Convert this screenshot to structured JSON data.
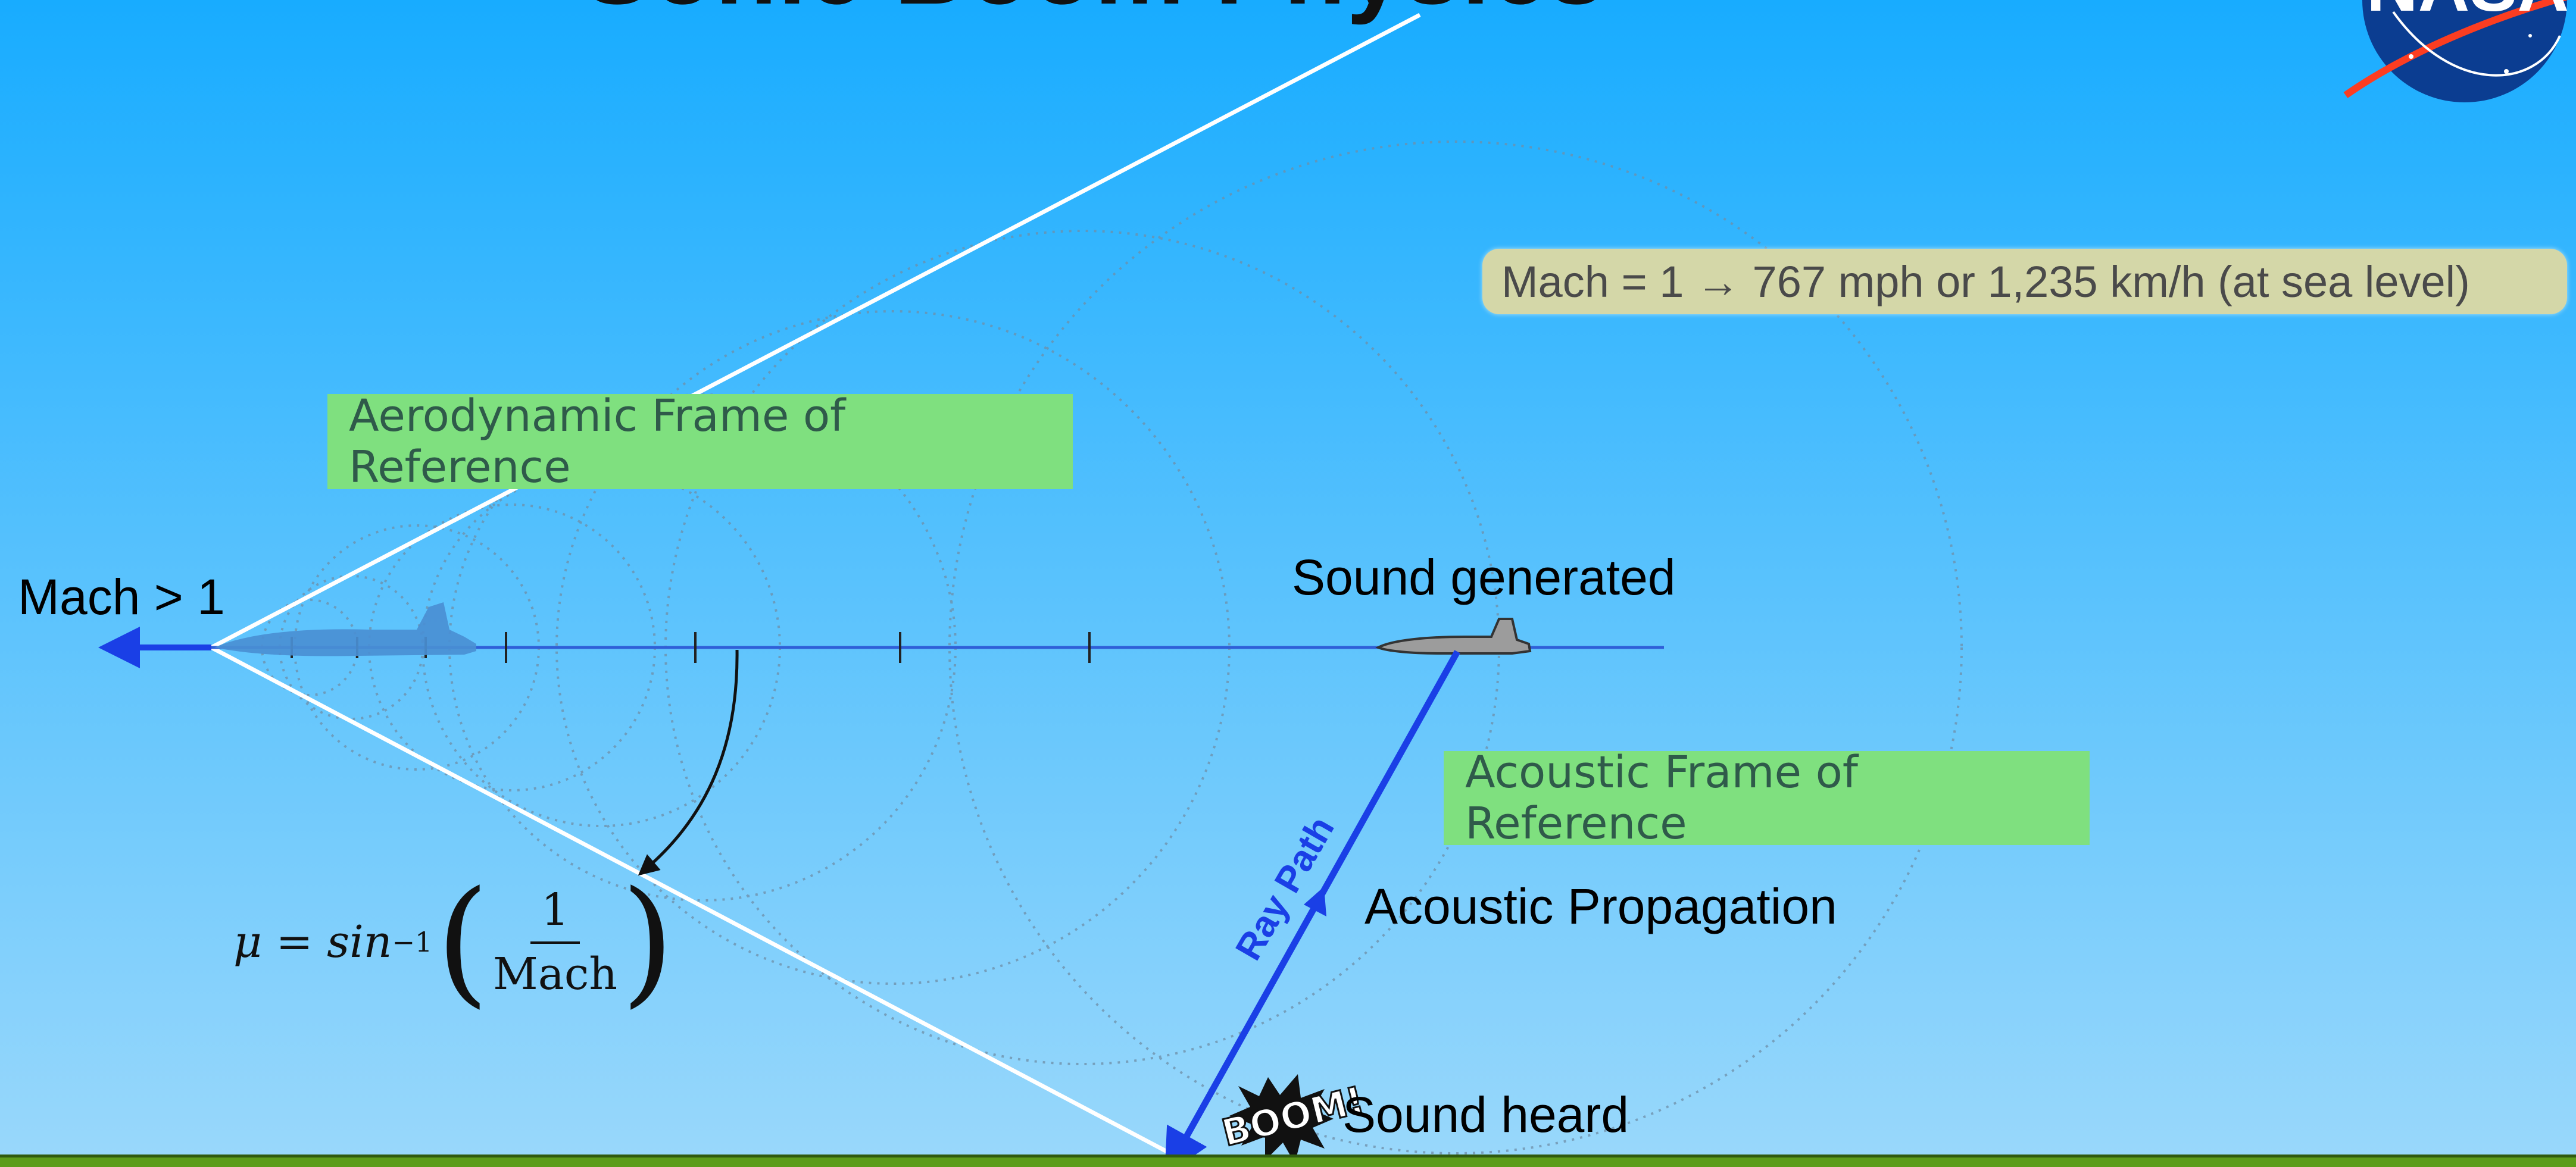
{
  "title": "Sonic Boom Physics",
  "labels": {
    "mach_gt_1": "Mach > 1",
    "sound_generated": "Sound generated",
    "acoustic_propagation": "Acoustic Propagation",
    "sound_heard": "Sound heard",
    "ray_path": "Ray Path",
    "aero_frame": "Aerodynamic Frame of Reference",
    "acoustic_frame": "Acoustic Frame of Reference",
    "mach_speed": "Mach = 1 → 767 mph or 1,235 km/h (at sea level)"
  },
  "formula": {
    "lhs": "μ = sin",
    "exp": "−1",
    "numerator": "1",
    "denominator": "Mach"
  },
  "logo": {
    "text": "NASA"
  },
  "boom_text": "BOOM!",
  "colors": {
    "sky_top": "#18acff",
    "sky_bottom": "#9ad8fb",
    "arrow_blue": "#1a3fe6",
    "flight_line": "#2f5fd8",
    "cone_white": "#ffffff",
    "green_box": "#7fe07f",
    "mach_pill": "#d4d7a8",
    "ground": "#5c9c1a",
    "nasa_blue": "#0b3d91",
    "nasa_red": "#fc3d21"
  },
  "icons": [
    "fighter-jet-icon",
    "boom-burst-icon",
    "nasa-logo-icon"
  ]
}
